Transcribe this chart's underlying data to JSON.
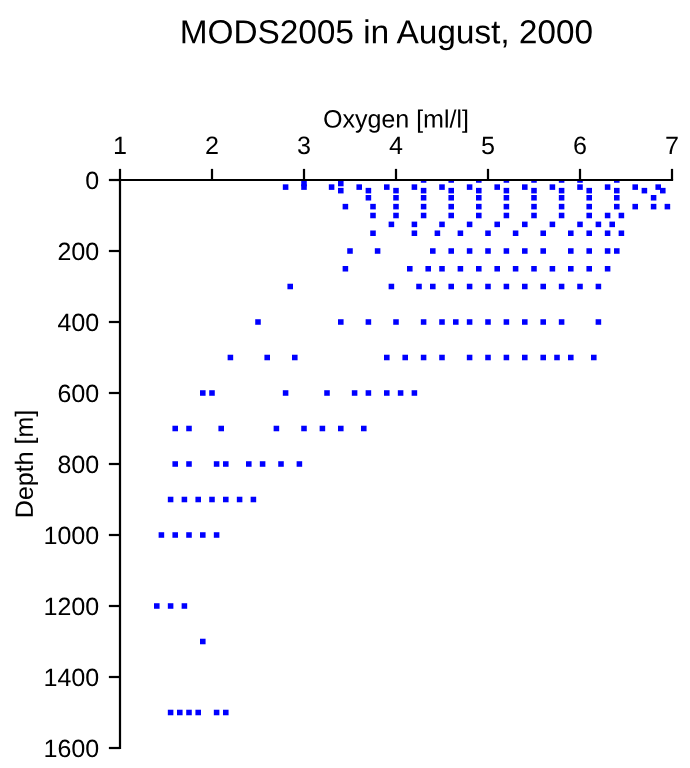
{
  "chart_data": {
    "type": "scatter",
    "title": "MODS2005 in August, 2000",
    "xlabel": "Oxygen [ml/l]",
    "ylabel": "Depth [m]",
    "xlim": [
      1,
      7
    ],
    "xticks": [
      1,
      2,
      3,
      4,
      5,
      6,
      7
    ],
    "ylim": [
      1600,
      0
    ],
    "yticks": [
      0,
      200,
      400,
      600,
      800,
      1000,
      1200,
      1400,
      1600
    ],
    "marker": "square",
    "grid": false,
    "legend": false,
    "series": [
      {
        "color": "#0000ff",
        "x": [
          4.3,
          4.6,
          4.9,
          5.2,
          5.5,
          5.8,
          6.0,
          6.4,
          3.0,
          3.4,
          2.8,
          3.0,
          3.3,
          3.6,
          3.9,
          4.2,
          4.5,
          4.8,
          5.1,
          5.4,
          5.7,
          6.0,
          6.3,
          6.6,
          6.85,
          3.4,
          3.7,
          4.0,
          4.3,
          4.6,
          4.9,
          5.2,
          5.5,
          5.8,
          6.1,
          6.4,
          6.7,
          6.9,
          3.7,
          4.0,
          4.3,
          4.6,
          4.9,
          5.2,
          5.5,
          5.8,
          6.1,
          6.4,
          6.8,
          3.45,
          3.75,
          4.0,
          4.3,
          4.6,
          4.9,
          5.2,
          5.5,
          5.8,
          6.1,
          6.4,
          6.6,
          6.8,
          6.95,
          3.75,
          4.0,
          4.3,
          4.6,
          4.9,
          5.2,
          5.5,
          5.8,
          6.1,
          6.3,
          6.45,
          3.95,
          4.2,
          4.5,
          4.8,
          5.1,
          5.4,
          5.7,
          6.0,
          6.2,
          6.35,
          3.75,
          4.2,
          4.45,
          4.7,
          5.0,
          5.3,
          5.6,
          5.9,
          6.1,
          6.3,
          6.45,
          3.5,
          3.8,
          4.4,
          4.6,
          4.8,
          5.0,
          5.2,
          5.4,
          5.6,
          5.9,
          6.1,
          6.3,
          6.4,
          3.45,
          4.15,
          4.35,
          4.5,
          4.7,
          4.9,
          5.1,
          5.3,
          5.5,
          5.7,
          5.9,
          6.1,
          6.3,
          2.85,
          3.95,
          4.25,
          4.4,
          4.6,
          4.8,
          5.0,
          5.2,
          5.4,
          5.6,
          5.8,
          6.0,
          6.2,
          2.5,
          3.4,
          3.7,
          4.0,
          4.3,
          4.5,
          4.65,
          4.8,
          5.0,
          5.2,
          5.4,
          5.6,
          5.8,
          6.2,
          2.2,
          2.6,
          2.9,
          3.9,
          4.1,
          4.3,
          4.5,
          4.8,
          5.0,
          5.2,
          5.4,
          5.6,
          5.75,
          5.9,
          6.15,
          1.9,
          2.0,
          2.8,
          3.25,
          3.55,
          3.7,
          3.9,
          4.05,
          4.2,
          1.6,
          1.75,
          2.1,
          2.7,
          3.0,
          3.2,
          3.4,
          3.65,
          1.6,
          1.75,
          2.05,
          2.15,
          2.4,
          2.55,
          2.75,
          2.95,
          1.55,
          1.7,
          1.85,
          2.0,
          2.15,
          2.3,
          2.45,
          1.45,
          1.6,
          1.75,
          1.9,
          2.05,
          1.4,
          1.55,
          1.7,
          1.9,
          1.55,
          1.65,
          1.75,
          1.85,
          2.05,
          2.15
        ],
        "values": [
          0,
          0,
          0,
          0,
          0,
          0,
          0,
          0,
          10,
          10,
          20,
          20,
          20,
          20,
          20,
          20,
          20,
          20,
          20,
          20,
          20,
          20,
          20,
          20,
          20,
          30,
          30,
          30,
          30,
          30,
          30,
          30,
          30,
          30,
          30,
          30,
          30,
          30,
          50,
          50,
          50,
          50,
          50,
          50,
          50,
          50,
          50,
          50,
          50,
          75,
          75,
          75,
          75,
          75,
          75,
          75,
          75,
          75,
          75,
          75,
          75,
          75,
          75,
          100,
          100,
          100,
          100,
          100,
          100,
          100,
          100,
          100,
          100,
          100,
          125,
          125,
          125,
          125,
          125,
          125,
          125,
          125,
          125,
          125,
          150,
          150,
          150,
          150,
          150,
          150,
          150,
          150,
          150,
          150,
          150,
          200,
          200,
          200,
          200,
          200,
          200,
          200,
          200,
          200,
          200,
          200,
          200,
          200,
          250,
          250,
          250,
          250,
          250,
          250,
          250,
          250,
          250,
          250,
          250,
          250,
          250,
          300,
          300,
          300,
          300,
          300,
          300,
          300,
          300,
          300,
          300,
          300,
          300,
          300,
          400,
          400,
          400,
          400,
          400,
          400,
          400,
          400,
          400,
          400,
          400,
          400,
          400,
          400,
          500,
          500,
          500,
          500,
          500,
          500,
          500,
          500,
          500,
          500,
          500,
          500,
          500,
          500,
          500,
          600,
          600,
          600,
          600,
          600,
          600,
          600,
          600,
          600,
          700,
          700,
          700,
          700,
          700,
          700,
          700,
          700,
          800,
          800,
          800,
          800,
          800,
          800,
          800,
          800,
          900,
          900,
          900,
          900,
          900,
          900,
          900,
          1000,
          1000,
          1000,
          1000,
          1000,
          1200,
          1200,
          1200,
          1300,
          1500,
          1500,
          1500,
          1500,
          1500,
          1500
        ]
      }
    ]
  }
}
